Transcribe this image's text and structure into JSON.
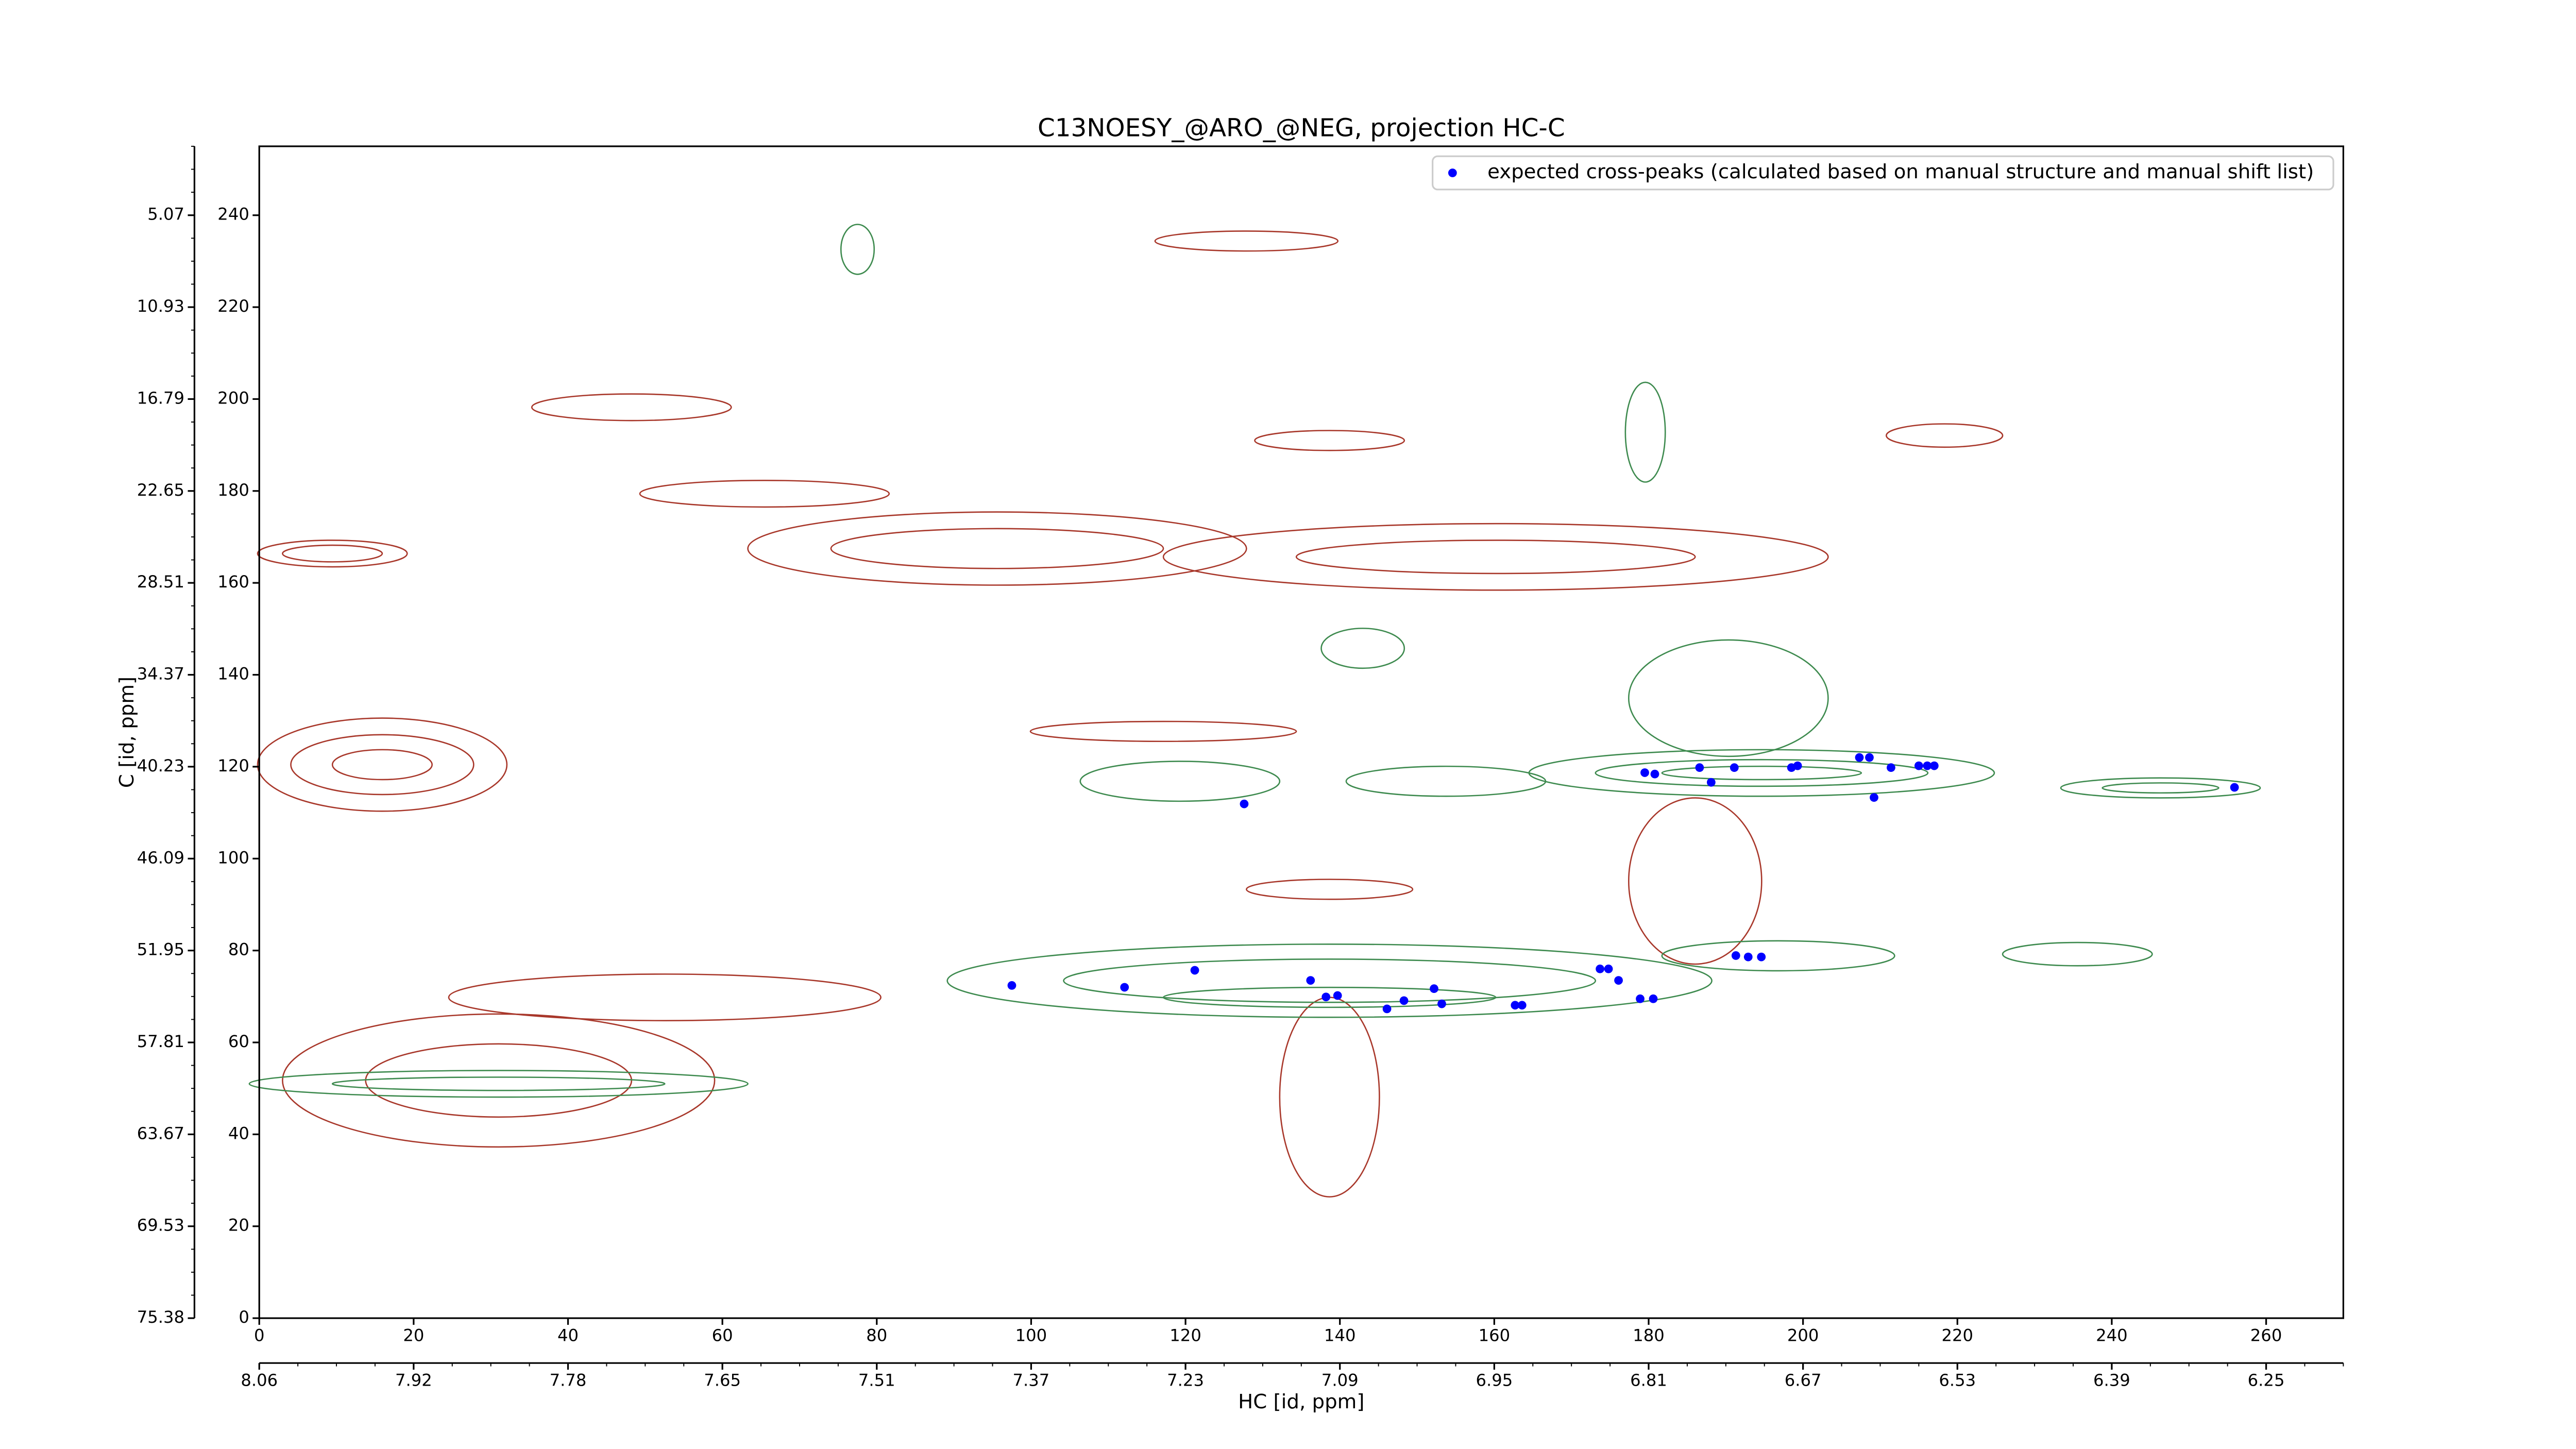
{
  "chart_data": {
    "type": "scatter",
    "title": "C13NOESY_@ARO_@NEG, projection HC-C",
    "xlabel": "HC [id, ppm]",
    "ylabel": "C [id, ppm]",
    "xlim": [
      0,
      270
    ],
    "ylim": [
      0,
      255
    ],
    "xticks": [
      0,
      20,
      40,
      60,
      80,
      100,
      120,
      140,
      160,
      180,
      200,
      220,
      240,
      260
    ],
    "yticks": [
      0,
      20,
      40,
      60,
      80,
      100,
      120,
      140,
      160,
      180,
      200,
      220,
      240
    ],
    "x2ticks": [
      {
        "value": 0,
        "label": "8.06"
      },
      {
        "value": 20,
        "label": "7.92"
      },
      {
        "value": 40,
        "label": "7.78"
      },
      {
        "value": 60,
        "label": "7.65"
      },
      {
        "value": 80,
        "label": "7.51"
      },
      {
        "value": 100,
        "label": "7.37"
      },
      {
        "value": 120,
        "label": "7.23"
      },
      {
        "value": 140,
        "label": "7.09"
      },
      {
        "value": 160,
        "label": "6.95"
      },
      {
        "value": 180,
        "label": "6.81"
      },
      {
        "value": 200,
        "label": "6.67"
      },
      {
        "value": 220,
        "label": "6.53"
      },
      {
        "value": 240,
        "label": "6.39"
      },
      {
        "value": 260,
        "label": "6.25"
      }
    ],
    "y2ticks": [
      {
        "value": 0,
        "label": "75.38"
      },
      {
        "value": 20,
        "label": "69.53"
      },
      {
        "value": 40,
        "label": "63.67"
      },
      {
        "value": 60,
        "label": "57.81"
      },
      {
        "value": 80,
        "label": "51.95"
      },
      {
        "value": 100,
        "label": "46.09"
      },
      {
        "value": 120,
        "label": "40.23"
      },
      {
        "value": 140,
        "label": "34.37"
      },
      {
        "value": 160,
        "label": "28.51"
      },
      {
        "value": 180,
        "label": "22.65"
      },
      {
        "value": 200,
        "label": "16.79"
      },
      {
        "value": 220,
        "label": "10.93"
      },
      {
        "value": 240,
        "label": "5.07"
      }
    ],
    "legend": "upper right",
    "series": [
      {
        "name": "expected cross-peaks (calculated based on manual structure and manual shift list)",
        "color": "#0000ff",
        "x": [
          97.5,
          112.1,
          121.2,
          127.6,
          136.2,
          138.2,
          139.7,
          146.1,
          148.3,
          152.2,
          153.2,
          162.7,
          163.6,
          173.7,
          174.8,
          176.1,
          178.9,
          180.6,
          179.5,
          180.8,
          186.6,
          188.1,
          191.1,
          191.3,
          192.9,
          194.6,
          198.5,
          199.3,
          207.3,
          208.6,
          209.2,
          211.4,
          215.0,
          216.1,
          217.0,
          255.9
        ],
        "values": [
          72.4,
          72.0,
          75.7,
          111.9,
          73.5,
          69.9,
          70.2,
          67.3,
          69.1,
          71.7,
          68.4,
          68.1,
          68.1,
          76.0,
          76.0,
          73.5,
          69.5,
          69.5,
          118.7,
          118.4,
          119.8,
          116.6,
          119.8,
          78.9,
          78.6,
          78.6,
          119.8,
          120.2,
          122.0,
          122.0,
          113.3,
          119.8,
          120.2,
          120.2,
          120.2,
          115.5
        ]
      }
    ]
  }
}
